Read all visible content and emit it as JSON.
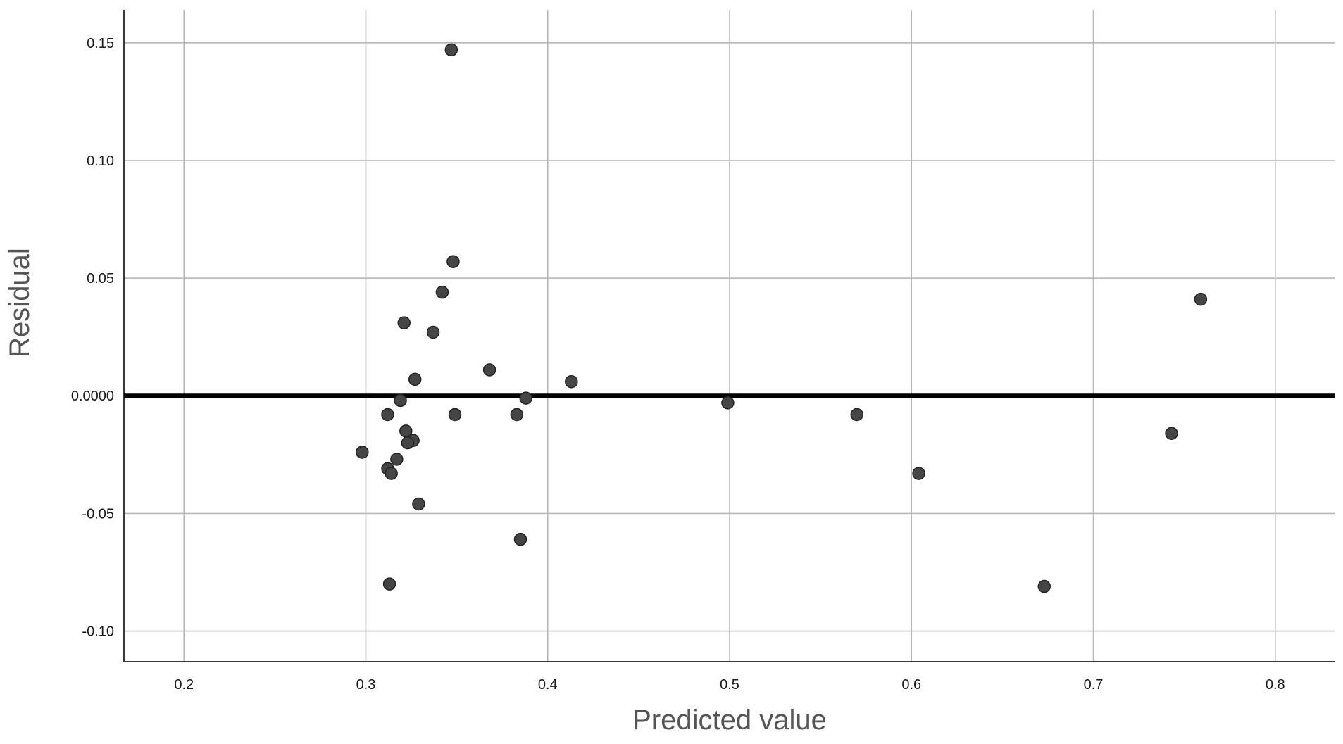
{
  "chart_data": {
    "type": "scatter",
    "xlabel": "Predicted value",
    "ylabel": "Residual",
    "xlim": [
      0.167,
      0.833
    ],
    "ylim": [
      -0.113,
      0.164
    ],
    "x_ticks": [
      0.2,
      0.3,
      0.4,
      0.5,
      0.6,
      0.7,
      0.8
    ],
    "x_tick_labels": [
      "0.2",
      "0.3",
      "0.4",
      "0.5",
      "0.6",
      "0.7",
      "0.8"
    ],
    "y_ticks": [
      0.15,
      0.1,
      0.05,
      0.0,
      -0.05,
      -0.1
    ],
    "y_tick_labels": [
      "0.15",
      "0.10",
      "0.05",
      "0.0000",
      "-0.05",
      "-0.10"
    ],
    "grid": true,
    "reference_line": {
      "y": 0.0
    },
    "points": [
      {
        "x": 0.347,
        "y": 0.147
      },
      {
        "x": 0.348,
        "y": 0.057
      },
      {
        "x": 0.342,
        "y": 0.044
      },
      {
        "x": 0.759,
        "y": 0.041
      },
      {
        "x": 0.321,
        "y": 0.031
      },
      {
        "x": 0.337,
        "y": 0.027
      },
      {
        "x": 0.368,
        "y": 0.011
      },
      {
        "x": 0.327,
        "y": 0.007
      },
      {
        "x": 0.413,
        "y": 0.006
      },
      {
        "x": 0.388,
        "y": -0.001
      },
      {
        "x": 0.319,
        "y": -0.002
      },
      {
        "x": 0.499,
        "y": -0.003
      },
      {
        "x": 0.57,
        "y": -0.008
      },
      {
        "x": 0.312,
        "y": -0.008
      },
      {
        "x": 0.349,
        "y": -0.008
      },
      {
        "x": 0.383,
        "y": -0.008
      },
      {
        "x": 0.743,
        "y": -0.016
      },
      {
        "x": 0.322,
        "y": -0.015
      },
      {
        "x": 0.326,
        "y": -0.019
      },
      {
        "x": 0.323,
        "y": -0.02
      },
      {
        "x": 0.298,
        "y": -0.024
      },
      {
        "x": 0.317,
        "y": -0.027
      },
      {
        "x": 0.312,
        "y": -0.031
      },
      {
        "x": 0.314,
        "y": -0.033
      },
      {
        "x": 0.604,
        "y": -0.033
      },
      {
        "x": 0.329,
        "y": -0.046
      },
      {
        "x": 0.385,
        "y": -0.061
      },
      {
        "x": 0.313,
        "y": -0.08
      },
      {
        "x": 0.673,
        "y": -0.081
      }
    ]
  }
}
